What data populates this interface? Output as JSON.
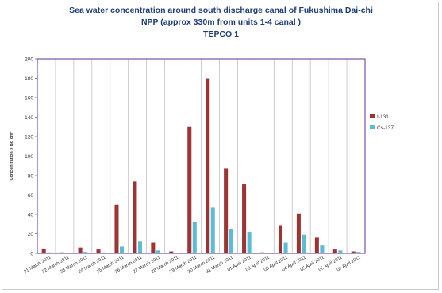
{
  "chart_data": {
    "type": "bar",
    "title_lines": [
      "Sea water concentration around south discharge canal of Fukushima Dai-chi",
      "NPP (approx 330m from units 1-4 canal )",
      "TEPCO  1"
    ],
    "ylabel": "Concentration x Bq cm³",
    "xlabel": "",
    "ylim": [
      0,
      200
    ],
    "yticks": [
      0,
      20,
      40,
      60,
      80,
      100,
      120,
      140,
      160,
      180,
      200
    ],
    "grid": "vertical",
    "legend_position": "right",
    "categories": [
      "21 March 2011",
      "22 March 2011",
      "23 March 2011",
      "24 March 2011",
      "25 March 2011",
      "26 March 2011",
      "27 March 2011",
      "28 March 2011",
      "29 March 2011",
      "30 March 2011",
      "31 March 2011",
      "01 April 2011",
      "02 April 2011",
      "03 April 2011",
      "04 April 2011",
      "05 April 2011",
      "06 April 2011",
      "07 April 2011"
    ],
    "series": [
      {
        "name": "I-131",
        "color": "#9c3434",
        "values": [
          5,
          1,
          6,
          4,
          50,
          74,
          11,
          2,
          130,
          180,
          87,
          71,
          1,
          29,
          41,
          16,
          4,
          2
        ]
      },
      {
        "name": "Cs-137",
        "color": "#5bbcd6",
        "values": [
          1,
          0.5,
          1.5,
          1,
          7,
          12,
          3,
          0.5,
          32,
          47,
          25,
          22,
          0.5,
          11,
          19,
          8,
          3,
          1.5
        ]
      }
    ]
  }
}
